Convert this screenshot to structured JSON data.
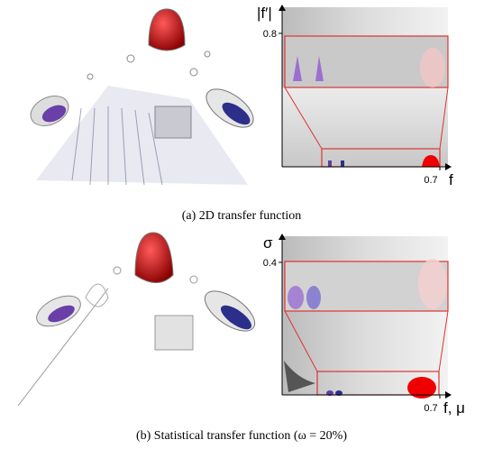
{
  "figure": {
    "panels": [
      {
        "caption": "(a)  2D transfer function",
        "y_axis_label": "|f′|",
        "x_axis_label": "f",
        "y_tick": "0.8",
        "x_tick": "0.7"
      },
      {
        "caption": "(b)  Statistical transfer function (ω = 20%)",
        "y_axis_label": "σ",
        "x_axis_label": "f, μ",
        "y_tick": "0.4",
        "x_tick": "0.7"
      }
    ]
  }
}
